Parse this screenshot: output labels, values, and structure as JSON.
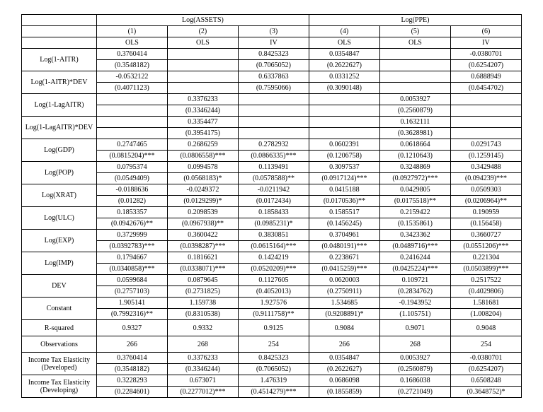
{
  "header": {
    "group1": "Log(ASSETS)",
    "group2": "Log(PPE)",
    "colnums": [
      "(1)",
      "(2)",
      "(3)",
      "(4)",
      "(5)",
      "(6)"
    ],
    "methods": [
      "OLS",
      "OLS",
      "IV",
      "OLS",
      "OLS",
      "IV"
    ]
  },
  "vars": [
    {
      "name": "Log(1-AITR)",
      "coef": [
        "0.3760414",
        "",
        "0.8425323",
        "0.0354847",
        "",
        "-0.0380701"
      ],
      "se": [
        "(0.3548182)",
        "",
        "(0.7065052)",
        "(0.2622627)",
        "",
        "(0.6254207)"
      ]
    },
    {
      "name": "Log(1-AITR)*DEV",
      "coef": [
        "-0.0532122",
        "",
        "0.6337863",
        "0.0331252",
        "",
        "0.6888949"
      ],
      "se": [
        "(0.4071123)",
        "",
        "(0.7595066)",
        "(0.3090148)",
        "",
        "(0.6454702)"
      ]
    },
    {
      "name": "Log(1-LagAITR)",
      "coef": [
        "",
        "0.3376233",
        "",
        "",
        "0.0053927",
        ""
      ],
      "se": [
        "",
        "(0.3346244)",
        "",
        "",
        "(0.2560879)",
        ""
      ]
    },
    {
      "name": "Log(1-LagAITR)*DEV",
      "coef": [
        "",
        "0.3354477",
        "",
        "",
        "0.1632111",
        ""
      ],
      "se": [
        "",
        "(0.3954175)",
        "",
        "",
        "(0.3628981)",
        ""
      ]
    },
    {
      "name": "Log(GDP)",
      "coef": [
        "0.2747465",
        "0.2686259",
        "0.2782932",
        "0.0602391",
        "0.0618664",
        "0.0291743"
      ],
      "se": [
        "(0.0815204)***",
        "(0.0806558)***",
        "(0.0866335)***",
        "(0.1206758)",
        "(0.1210643)",
        "(0.1259145)"
      ]
    },
    {
      "name": "Log(POP)",
      "coef": [
        "0.0795374",
        "0.0994578",
        "0.1139491",
        "0.3097537",
        "0.3248869",
        "0.3429488"
      ],
      "se": [
        "(0.0549409)",
        "(0.0568183)*",
        "(0.0578588)**",
        "(0.0917124)***",
        "(0.0927972)***",
        "(0.094239)***"
      ]
    },
    {
      "name": "Log(XRAT)",
      "coef": [
        "-0.0188636",
        "-0.0249372",
        "-0.0211942",
        "0.0415188",
        "0.0429805",
        "0.0509303"
      ],
      "se": [
        "(0.01282)",
        "(0.0129299)*",
        "(0.0172434)",
        "(0.0170536)**",
        "(0.0175518)**",
        "(0.0206964)**"
      ]
    },
    {
      "name": "Log(ULC)",
      "coef": [
        "0.1853357",
        "0.2098539",
        "0.1858433",
        "0.1585517",
        "0.2159422",
        "0.190959"
      ],
      "se": [
        "(0.0942676)**",
        "(0.0967938)**",
        "(0.0985231)*",
        "(0.1456245)",
        "(0.1535861)",
        "(0.156458)"
      ]
    },
    {
      "name": "Log(EXP)",
      "coef": [
        "0.3729999",
        "0.3600422",
        "0.3830851",
        "0.3704961",
        "0.3423362",
        "0.3660727"
      ],
      "se": [
        "(0.0392783)***",
        "(0.0398287)***",
        "(0.0615164)***",
        "(0.0480191)***",
        "(0.0489716)***",
        "(0.0551206)***"
      ]
    },
    {
      "name": "Log(IMP)",
      "coef": [
        "0.1794667",
        "0.1816621",
        "0.1424219",
        "0.2238671",
        "0.2416244",
        "0.221304"
      ],
      "se": [
        "(0.0340858)***",
        "(0.0338071)***",
        "(0.0520209)***",
        "(0.0415259)***",
        "(0.0425224)***",
        "(0.0503899)***"
      ]
    },
    {
      "name": "DEV",
      "coef": [
        "0.0599684",
        "0.0879645",
        "0.1127605",
        "0.0620003",
        "0.109721",
        "0.2517522"
      ],
      "se": [
        "(0.2757103)",
        "(0.2731825)",
        "(0.4052013)",
        "(0.2750911)",
        "(0.2834762)",
        "(0.4029806)"
      ]
    },
    {
      "name": "Constant",
      "coef": [
        "1.905141",
        "1.159738",
        "1.927576",
        "1.534685",
        "-0.1943952",
        "1.581681"
      ],
      "se": [
        "(0.7992316)**",
        "(0.8310538)",
        "(0.9111758)**",
        "(0.9208891)*",
        "(1.105751)",
        "(1.008204)"
      ]
    }
  ],
  "stats": [
    {
      "name": "R-squared",
      "vals": [
        "0.9327",
        "0.9332",
        "0.9125",
        "0.9084",
        "0.9071",
        "0.9048"
      ]
    },
    {
      "name": "Observations",
      "vals": [
        "266",
        "268",
        "254",
        "266",
        "268",
        "254"
      ]
    }
  ],
  "elasticity": [
    {
      "name": "Income Tax Elasticity (Developed)",
      "coef": [
        "0.3760414",
        "0.3376233",
        "0.8425323",
        "0.0354847",
        "0.0053927",
        "-0.0380701"
      ],
      "se": [
        "(0.3548182)",
        "(0.3346244)",
        "(0.7065052)",
        "(0.2622627)",
        "(0.2560879)",
        "(0.6254207)"
      ]
    },
    {
      "name": "Income Tax Elasticity (Developing)",
      "coef": [
        "0.3228293",
        "0.673071",
        "1.476319",
        "0.0686098",
        "0.1686038",
        "0.6508248"
      ],
      "se": [
        "(0.2284601)",
        "(0.2277012)***",
        "(0.4514279)***",
        "(0.1855859)",
        "(0.2721049)",
        "(0.3648752)*"
      ]
    }
  ]
}
